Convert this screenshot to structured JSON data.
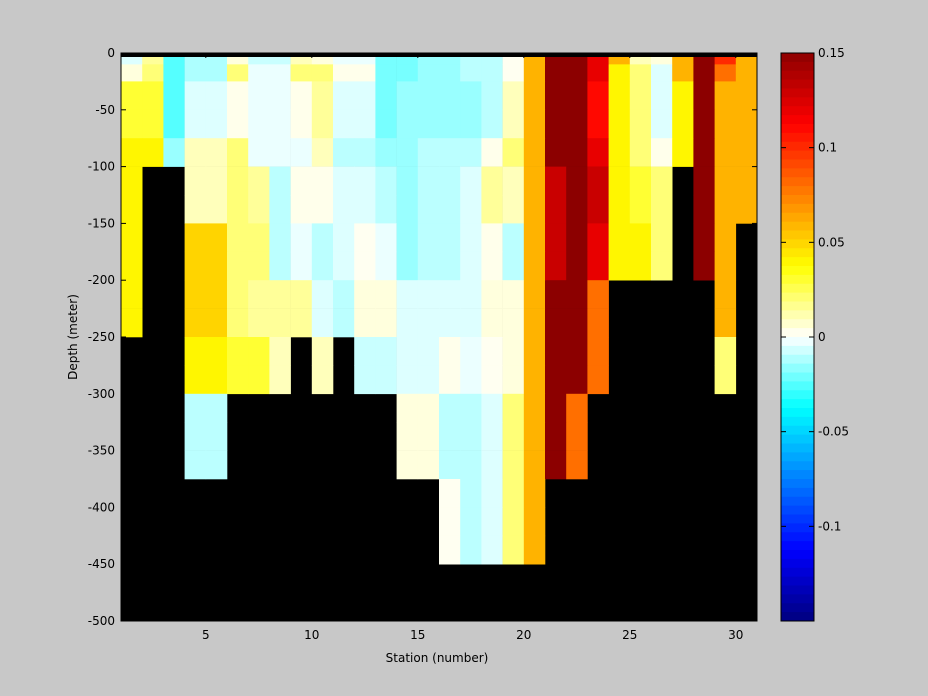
{
  "chart_data": {
    "type": "heatmap",
    "title": "",
    "xlabel": "Station (number)",
    "ylabel": "Depth (meter)",
    "xlim": [
      1,
      31
    ],
    "ylim": [
      -500,
      0
    ],
    "x_ticks": [
      5,
      10,
      15,
      20,
      25,
      30
    ],
    "y_ticks": [
      0,
      -50,
      -100,
      -150,
      -200,
      -250,
      -300,
      -350,
      -400,
      -450,
      -500
    ],
    "colorbar": {
      "range": [
        -0.15,
        0.15
      ],
      "ticks": [
        0.15,
        0.1,
        0.05,
        0,
        -0.05,
        -0.1
      ],
      "tick_labels": [
        "0.15",
        "0.1",
        "0.05",
        "0",
        "-0.05",
        "-0.1"
      ]
    },
    "missing_color": "#000000",
    "stations": [
      1,
      2,
      3,
      4,
      5,
      6,
      7,
      8,
      9,
      10,
      11,
      12,
      13,
      14,
      15,
      16,
      17,
      18,
      19,
      20,
      21,
      22,
      23,
      24,
      25,
      26,
      27,
      28,
      29,
      30
    ],
    "depth_bins": [
      [
        0,
        -10
      ],
      [
        -10,
        -25
      ],
      [
        -25,
        -50
      ],
      [
        -50,
        -75
      ],
      [
        -75,
        -100
      ],
      [
        -100,
        -125
      ],
      [
        -125,
        -150
      ],
      [
        -150,
        -175
      ],
      [
        -175,
        -200
      ],
      [
        -200,
        -225
      ],
      [
        -225,
        -250
      ],
      [
        -250,
        -275
      ],
      [
        -275,
        -300
      ],
      [
        -300,
        -325
      ],
      [
        -325,
        -350
      ],
      [
        -350,
        -375
      ],
      [
        -375,
        -400
      ],
      [
        -400,
        -425
      ],
      [
        -425,
        -450
      ],
      [
        -450,
        -475
      ],
      [
        -475,
        -500
      ]
    ],
    "values": [
      [
        -0.005,
        0.015,
        -0.025,
        -0.012,
        -0.012,
        0.005,
        -0.008,
        -0.008,
        0.01,
        0.005,
        -0.003,
        -0.003,
        -0.02,
        -0.02,
        -0.015,
        -0.015,
        -0.01,
        -0.01,
        0.002,
        0.06,
        0.15,
        0.15,
        0.12,
        0.06,
        0.01,
        0.005,
        0.06,
        0.15,
        0.1,
        0.06
      ],
      [
        0.005,
        0.02,
        -0.025,
        -0.012,
        -0.012,
        0.02,
        -0.003,
        -0.003,
        0.02,
        0.02,
        0.003,
        0.003,
        -0.02,
        -0.02,
        -0.015,
        -0.015,
        -0.01,
        -0.01,
        0.002,
        0.06,
        0.15,
        0.15,
        0.12,
        0.04,
        0.02,
        -0.005,
        0.06,
        0.15,
        0.08,
        0.06
      ],
      [
        0.03,
        0.03,
        -0.025,
        -0.005,
        -0.005,
        0.003,
        -0.003,
        -0.003,
        0.003,
        0.015,
        -0.005,
        -0.005,
        -0.02,
        -0.015,
        -0.015,
        -0.015,
        -0.015,
        -0.01,
        0.01,
        0.06,
        0.15,
        0.15,
        0.11,
        0.04,
        0.02,
        -0.005,
        0.04,
        0.15,
        0.06,
        0.06
      ],
      [
        0.03,
        0.03,
        -0.025,
        -0.005,
        -0.005,
        0.003,
        -0.003,
        -0.003,
        0.003,
        0.015,
        -0.005,
        -0.005,
        -0.02,
        -0.015,
        -0.015,
        -0.015,
        -0.015,
        -0.01,
        0.01,
        0.06,
        0.15,
        0.15,
        0.11,
        0.04,
        0.02,
        -0.005,
        0.04,
        0.15,
        0.06,
        0.06
      ],
      [
        0.04,
        0.04,
        -0.015,
        0.01,
        0.01,
        0.02,
        -0.003,
        -0.003,
        -0.003,
        0.01,
        -0.01,
        -0.01,
        -0.015,
        -0.015,
        -0.01,
        -0.01,
        -0.01,
        0.003,
        0.02,
        0.06,
        0.15,
        0.15,
        0.12,
        0.04,
        0.02,
        0.003,
        0.04,
        0.15,
        0.06,
        0.06
      ],
      [
        0.04,
        null,
        null,
        0.01,
        0.01,
        0.02,
        0.015,
        -0.01,
        0.003,
        0.003,
        -0.005,
        -0.005,
        -0.01,
        -0.015,
        -0.01,
        -0.01,
        -0.005,
        0.015,
        0.01,
        0.06,
        0.13,
        0.15,
        0.13,
        0.04,
        0.03,
        0.02,
        null,
        0.15,
        0.06,
        0.06
      ],
      [
        0.04,
        null,
        null,
        0.01,
        0.01,
        0.02,
        0.015,
        -0.01,
        0.003,
        0.003,
        -0.005,
        -0.005,
        -0.01,
        -0.015,
        -0.01,
        -0.01,
        -0.005,
        0.015,
        0.01,
        0.06,
        0.13,
        0.15,
        0.13,
        0.04,
        0.03,
        0.02,
        null,
        0.15,
        0.06,
        0.06
      ],
      [
        0.04,
        null,
        null,
        0.05,
        0.05,
        0.02,
        0.02,
        -0.01,
        -0.003,
        -0.01,
        -0.005,
        0.002,
        -0.003,
        -0.015,
        -0.01,
        -0.01,
        -0.005,
        0.003,
        -0.01,
        0.06,
        0.13,
        0.15,
        0.12,
        0.04,
        0.04,
        0.02,
        null,
        0.15,
        0.06,
        null
      ],
      [
        0.04,
        null,
        null,
        0.05,
        0.05,
        0.02,
        0.02,
        -0.01,
        -0.003,
        -0.01,
        -0.005,
        0.002,
        -0.003,
        -0.015,
        -0.01,
        -0.01,
        -0.005,
        0.003,
        -0.01,
        0.06,
        0.13,
        0.15,
        0.12,
        0.04,
        0.04,
        0.02,
        null,
        0.15,
        0.06,
        null
      ],
      [
        0.04,
        null,
        null,
        0.05,
        0.05,
        0.02,
        0.015,
        0.015,
        0.015,
        -0.005,
        -0.01,
        0.005,
        0.005,
        -0.005,
        -0.005,
        -0.005,
        -0.005,
        0.005,
        0.005,
        0.06,
        0.15,
        0.15,
        0.08,
        null,
        null,
        null,
        null,
        null,
        0.06,
        null
      ],
      [
        0.04,
        null,
        null,
        0.05,
        0.05,
        0.02,
        0.015,
        0.015,
        0.015,
        -0.005,
        -0.01,
        0.005,
        0.005,
        -0.005,
        -0.005,
        -0.005,
        -0.005,
        0.005,
        0.005,
        0.06,
        0.15,
        0.15,
        0.08,
        null,
        null,
        null,
        null,
        null,
        0.06,
        null
      ],
      [
        null,
        null,
        null,
        0.04,
        0.04,
        0.03,
        0.03,
        0.01,
        null,
        0.01,
        null,
        -0.008,
        -0.008,
        -0.005,
        -0.005,
        0.003,
        -0.003,
        0.002,
        0.005,
        0.06,
        0.15,
        0.15,
        0.08,
        null,
        null,
        null,
        null,
        null,
        0.02,
        null
      ],
      [
        null,
        null,
        null,
        0.04,
        0.04,
        0.03,
        0.03,
        0.01,
        null,
        0.01,
        null,
        -0.008,
        -0.008,
        -0.005,
        -0.005,
        0.003,
        -0.003,
        0.002,
        0.005,
        0.06,
        0.15,
        0.15,
        0.08,
        null,
        null,
        null,
        null,
        null,
        0.02,
        null
      ],
      [
        null,
        null,
        null,
        -0.01,
        -0.01,
        null,
        null,
        null,
        null,
        null,
        null,
        null,
        null,
        0.005,
        0.005,
        -0.01,
        -0.01,
        -0.005,
        0.02,
        0.06,
        0.15,
        0.08,
        null,
        null,
        null,
        null,
        null,
        null,
        null,
        null
      ],
      [
        null,
        null,
        null,
        -0.01,
        -0.01,
        null,
        null,
        null,
        null,
        null,
        null,
        null,
        null,
        0.005,
        0.005,
        -0.01,
        -0.01,
        -0.005,
        0.02,
        0.06,
        0.15,
        0.08,
        null,
        null,
        null,
        null,
        null,
        null,
        null,
        null
      ],
      [
        null,
        null,
        null,
        -0.01,
        -0.01,
        null,
        null,
        null,
        null,
        null,
        null,
        null,
        null,
        0.005,
        0.005,
        -0.01,
        -0.01,
        -0.005,
        0.02,
        0.06,
        0.15,
        0.08,
        null,
        null,
        null,
        null,
        null,
        null,
        null,
        null
      ],
      [
        null,
        null,
        null,
        null,
        null,
        null,
        null,
        null,
        null,
        null,
        null,
        null,
        null,
        null,
        null,
        0.002,
        -0.01,
        -0.005,
        0.02,
        0.06,
        null,
        null,
        null,
        null,
        null,
        null,
        null,
        null,
        null,
        null
      ],
      [
        null,
        null,
        null,
        null,
        null,
        null,
        null,
        null,
        null,
        null,
        null,
        null,
        null,
        null,
        null,
        0.002,
        -0.01,
        -0.005,
        0.02,
        0.06,
        null,
        null,
        null,
        null,
        null,
        null,
        null,
        null,
        null,
        null
      ],
      [
        null,
        null,
        null,
        null,
        null,
        null,
        null,
        null,
        null,
        null,
        null,
        null,
        null,
        null,
        null,
        0.002,
        -0.01,
        -0.005,
        0.02,
        0.06,
        null,
        null,
        null,
        null,
        null,
        null,
        null,
        null,
        null,
        null
      ],
      [
        null,
        null,
        null,
        null,
        null,
        null,
        null,
        null,
        null,
        null,
        null,
        null,
        null,
        null,
        null,
        null,
        null,
        null,
        null,
        null,
        null,
        null,
        null,
        null,
        null,
        null,
        null,
        null,
        null,
        null
      ],
      [
        null,
        null,
        null,
        null,
        null,
        null,
        null,
        null,
        null,
        null,
        null,
        null,
        null,
        null,
        null,
        null,
        null,
        null,
        null,
        null,
        null,
        null,
        null,
        null,
        null,
        null,
        null,
        null,
        null,
        null
      ]
    ]
  }
}
